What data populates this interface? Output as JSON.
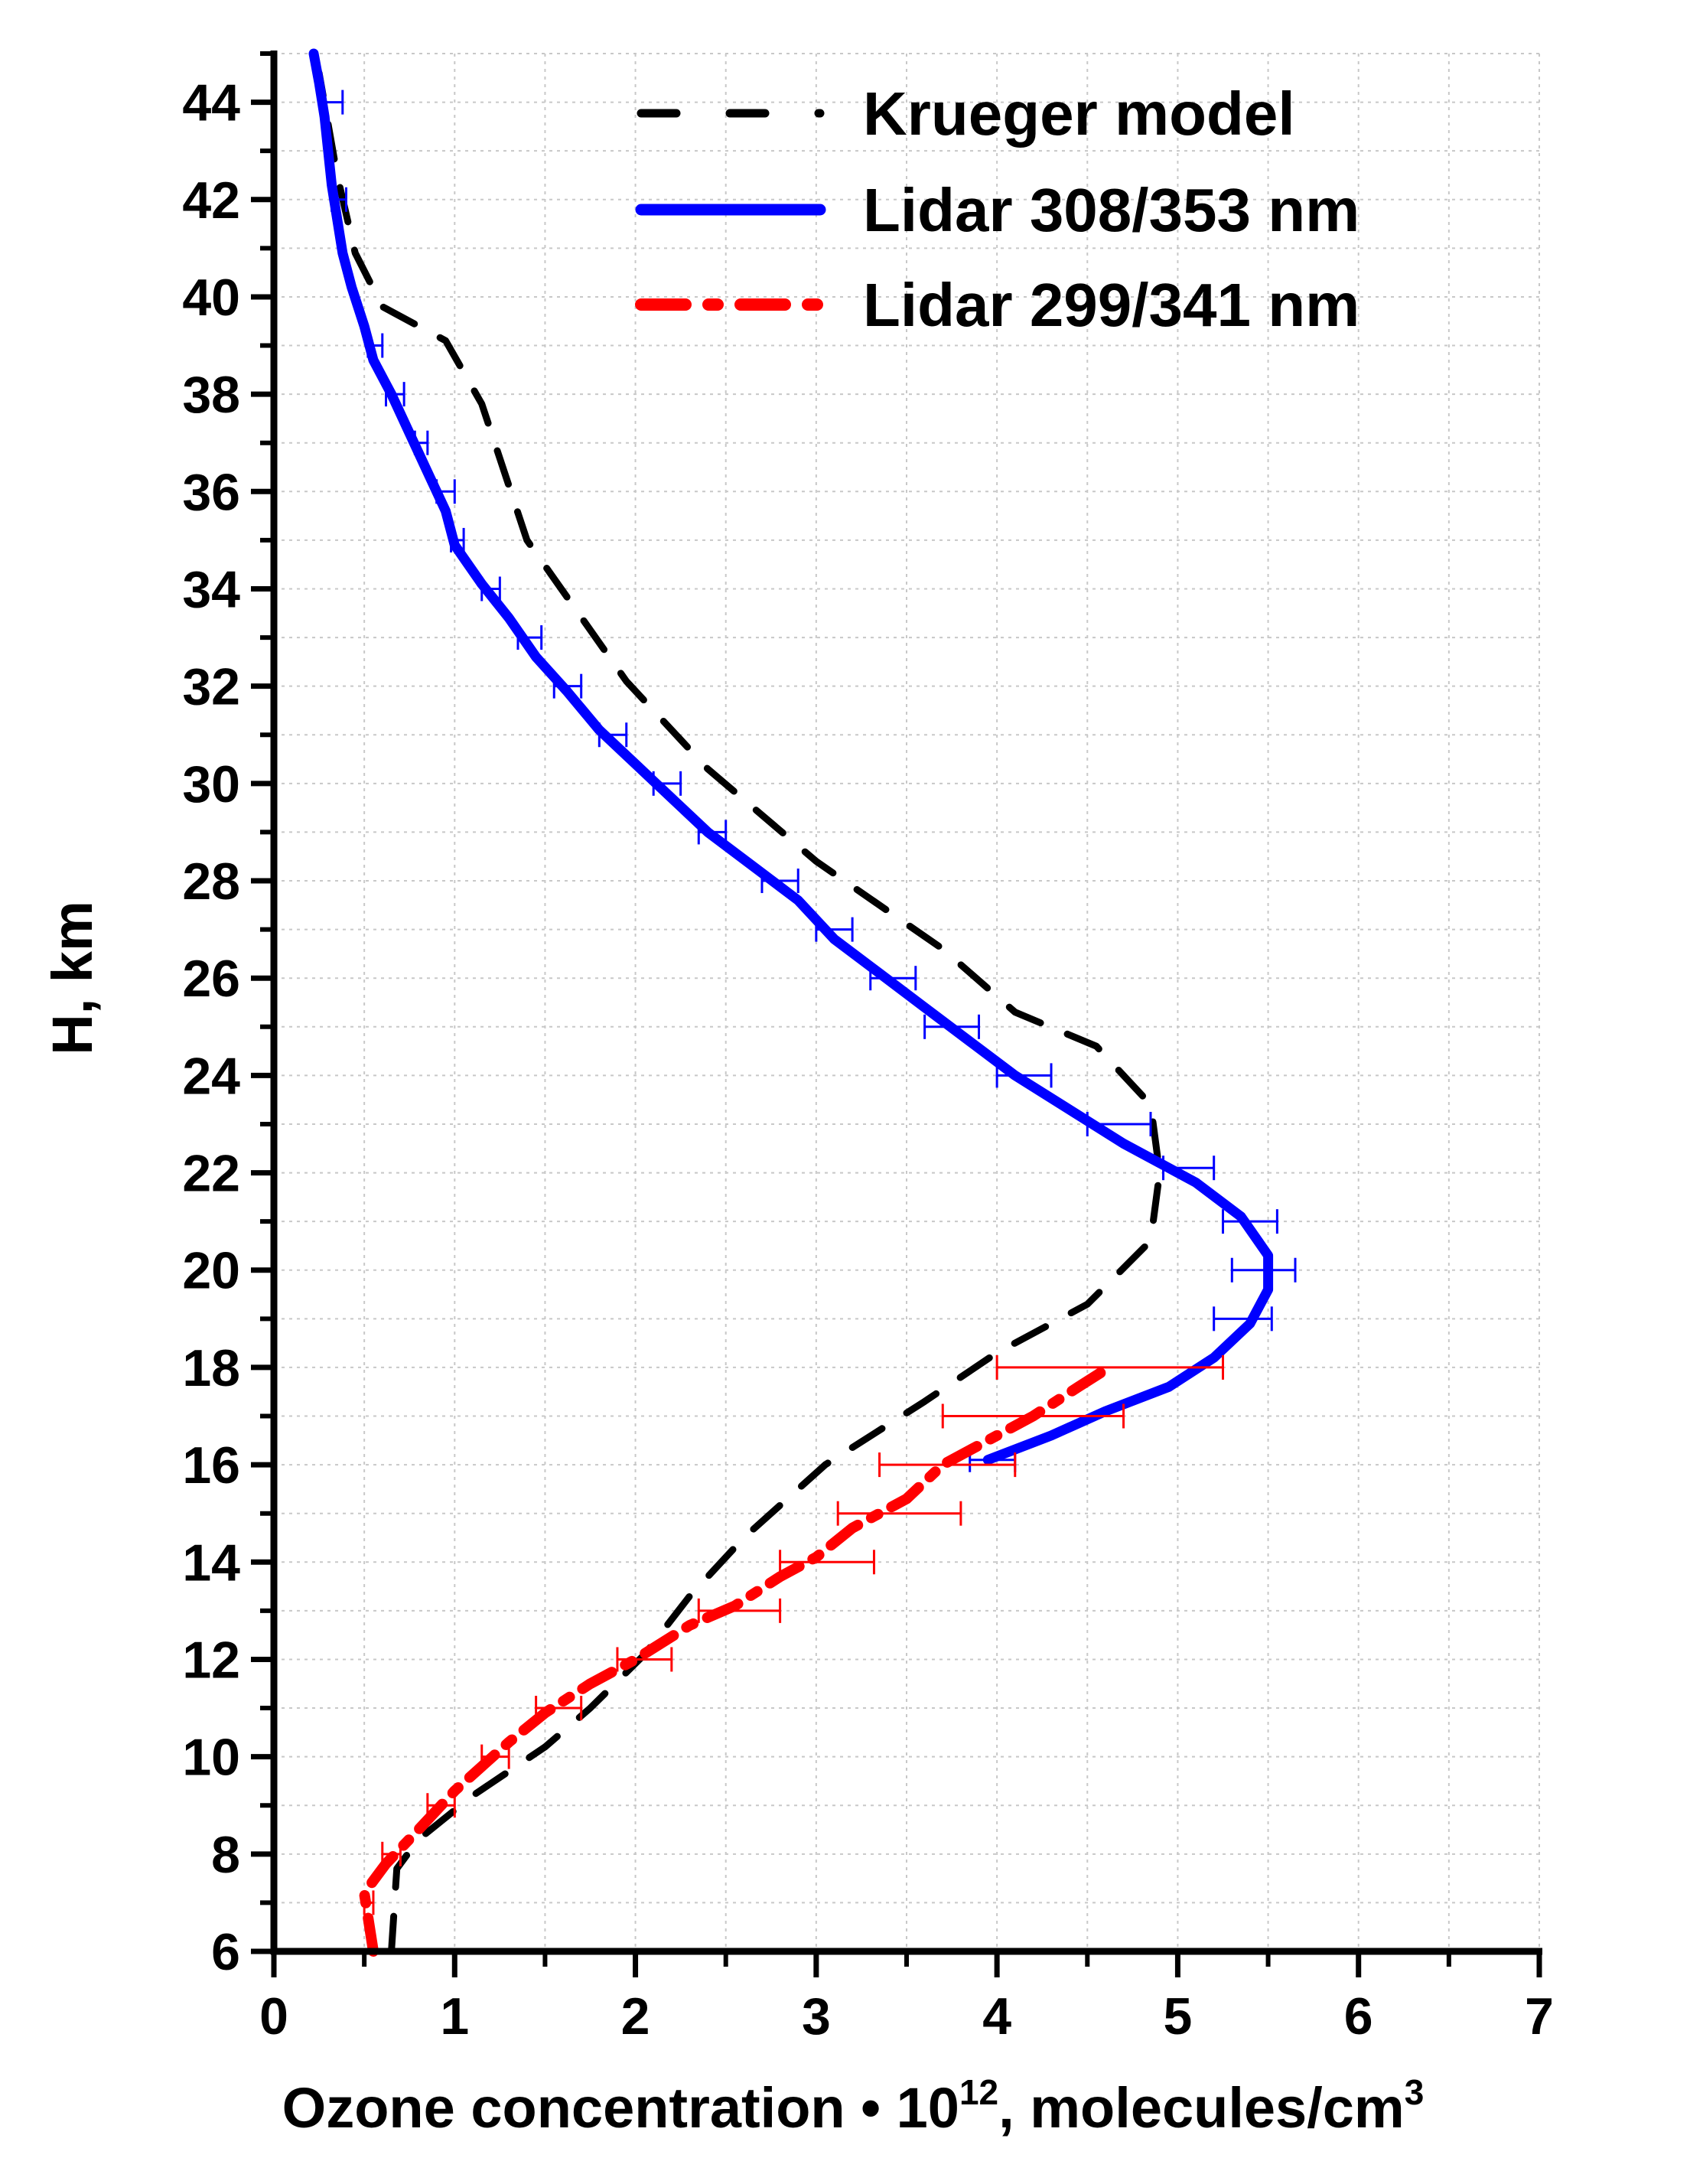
{
  "chart_data": {
    "type": "line",
    "title": "",
    "xlabel": "Ozone concentration • 10",
    "xlabel_sup": "12",
    "xlabel_tail": ", molecules/cm",
    "xlabel_tail_sup": "3",
    "ylabel": "H, km",
    "xlim": [
      0,
      7
    ],
    "ylim": [
      6,
      45
    ],
    "x_ticks": [
      0,
      1,
      2,
      3,
      4,
      5,
      6,
      7
    ],
    "x_tick_labels": [
      "0",
      "1",
      "2",
      "3",
      "4",
      "5",
      "6",
      "7"
    ],
    "y_ticks": [
      6,
      8,
      10,
      12,
      14,
      16,
      18,
      20,
      22,
      24,
      26,
      28,
      30,
      32,
      34,
      36,
      38,
      40,
      42,
      44
    ],
    "y_tick_labels": [
      "6",
      "8",
      "10",
      "12",
      "14",
      "16",
      "18",
      "20",
      "22",
      "24",
      "26",
      "28",
      "30",
      "32",
      "34",
      "36",
      "38",
      "40",
      "42",
      "44"
    ],
    "grid": "dotted",
    "legend_position": "top-right",
    "series": [
      {
        "name": "Krueger model",
        "color": "#000000",
        "style": "dash",
        "points": [
          [
            0.65,
            6
          ],
          [
            0.68,
            7.7
          ],
          [
            0.8,
            8.3
          ],
          [
            1.1,
            9.2
          ],
          [
            1.5,
            10.2
          ],
          [
            1.75,
            11
          ],
          [
            2.05,
            12.1
          ],
          [
            2.3,
            13.3
          ],
          [
            2.6,
            14.5
          ],
          [
            3.05,
            16
          ],
          [
            3.6,
            17.3
          ],
          [
            4.0,
            18.3
          ],
          [
            4.5,
            19.3
          ],
          [
            4.85,
            20.6
          ],
          [
            4.9,
            22
          ],
          [
            4.85,
            23.4
          ],
          [
            4.55,
            24.6
          ],
          [
            4.1,
            25.3
          ],
          [
            3.7,
            26.6
          ],
          [
            3.0,
            28.4
          ],
          [
            2.4,
            30.3
          ],
          [
            1.95,
            32.1
          ],
          [
            1.4,
            35.0
          ],
          [
            1.15,
            37.8
          ],
          [
            0.95,
            39.1
          ],
          [
            0.6,
            39.8
          ],
          [
            0.45,
            40.9
          ],
          [
            0.35,
            42.5
          ],
          [
            0.25,
            44.6
          ]
        ]
      },
      {
        "name": "Lidar 308/353 nm",
        "color": "#0000ff",
        "style": "solid",
        "points": [
          [
            3.95,
            16.1
          ],
          [
            4.3,
            16.6
          ],
          [
            4.6,
            17.1
          ],
          [
            4.95,
            17.6
          ],
          [
            5.2,
            18.2
          ],
          [
            5.4,
            18.9
          ],
          [
            5.5,
            19.6
          ],
          [
            5.5,
            20.3
          ],
          [
            5.35,
            21.1
          ],
          [
            5.1,
            21.8
          ],
          [
            4.7,
            22.6
          ],
          [
            4.4,
            23.3
          ],
          [
            4.1,
            24.0
          ],
          [
            3.85,
            24.7
          ],
          [
            3.6,
            25.4
          ],
          [
            3.35,
            26.1
          ],
          [
            3.1,
            26.8
          ],
          [
            2.9,
            27.6
          ],
          [
            2.65,
            28.3
          ],
          [
            2.4,
            29.0
          ],
          [
            2.2,
            29.7
          ],
          [
            2.0,
            30.4
          ],
          [
            1.8,
            31.1
          ],
          [
            1.62,
            31.9
          ],
          [
            1.45,
            32.6
          ],
          [
            1.3,
            33.4
          ],
          [
            1.15,
            34.1
          ],
          [
            1.0,
            34.9
          ],
          [
            0.95,
            35.6
          ],
          [
            0.85,
            36.4
          ],
          [
            0.75,
            37.2
          ],
          [
            0.65,
            38.0
          ],
          [
            0.55,
            38.7
          ],
          [
            0.5,
            39.4
          ],
          [
            0.43,
            40.2
          ],
          [
            0.38,
            40.9
          ],
          [
            0.35,
            41.6
          ],
          [
            0.32,
            42.3
          ],
          [
            0.3,
            43.0
          ],
          [
            0.28,
            43.7
          ],
          [
            0.25,
            44.4
          ],
          [
            0.22,
            45.0
          ]
        ],
        "x_errors": [
          [
            3.85,
            4.1,
            16.1
          ],
          [
            4.92,
            5.2,
            22.1
          ],
          [
            5.25,
            5.55,
            21.0
          ],
          [
            5.3,
            5.65,
            20.0
          ],
          [
            5.2,
            5.52,
            19.0
          ],
          [
            4.5,
            4.85,
            23.0
          ],
          [
            4.0,
            4.3,
            24.0
          ],
          [
            3.6,
            3.9,
            25.0
          ],
          [
            3.3,
            3.55,
            26.0
          ],
          [
            3.0,
            3.2,
            27.0
          ],
          [
            2.7,
            2.9,
            28.0
          ],
          [
            2.35,
            2.5,
            29.0
          ],
          [
            2.1,
            2.25,
            30.0
          ],
          [
            1.8,
            1.95,
            31.0
          ],
          [
            1.55,
            1.7,
            32.0
          ],
          [
            1.35,
            1.48,
            33.0
          ],
          [
            1.15,
            1.25,
            34.0
          ],
          [
            0.98,
            1.05,
            35.0
          ],
          [
            0.9,
            1.0,
            36.0
          ],
          [
            0.78,
            0.85,
            37.0
          ],
          [
            0.62,
            0.72,
            38.0
          ],
          [
            0.52,
            0.6,
            39.0
          ],
          [
            0.32,
            0.4,
            42.0
          ],
          [
            0.28,
            0.38,
            44.0
          ]
        ]
      },
      {
        "name": "Lidar 299/341 nm",
        "color": "#ff0000",
        "style": "dash-dot",
        "points": [
          [
            0.55,
            6
          ],
          [
            0.5,
            7.2
          ],
          [
            0.62,
            7.8
          ],
          [
            0.8,
            8.5
          ],
          [
            1.0,
            9.3
          ],
          [
            1.15,
            9.8
          ],
          [
            1.3,
            10.3
          ],
          [
            1.5,
            10.9
          ],
          [
            1.75,
            11.5
          ],
          [
            2.0,
            12.0
          ],
          [
            2.3,
            12.7
          ],
          [
            2.55,
            13.1
          ],
          [
            2.8,
            13.7
          ],
          [
            3.0,
            14.1
          ],
          [
            3.2,
            14.7
          ],
          [
            3.5,
            15.3
          ],
          [
            3.7,
            16.0
          ],
          [
            3.95,
            16.5
          ],
          [
            4.2,
            17.0
          ],
          [
            4.45,
            17.6
          ],
          [
            4.62,
            18.0
          ]
        ],
        "x_errors": [
          [
            4.0,
            5.25,
            18.0
          ],
          [
            3.7,
            4.7,
            17.0
          ],
          [
            3.35,
            4.1,
            16.0
          ],
          [
            3.12,
            3.8,
            15.0
          ],
          [
            2.8,
            3.32,
            14.0
          ],
          [
            2.35,
            2.8,
            13.0
          ],
          [
            1.9,
            2.2,
            12.0
          ],
          [
            1.45,
            1.7,
            11.0
          ],
          [
            1.15,
            1.3,
            10.0
          ],
          [
            0.85,
            1.0,
            9.0
          ],
          [
            0.6,
            0.7,
            8.0
          ],
          [
            0.5,
            0.55,
            7.0
          ]
        ]
      }
    ]
  }
}
